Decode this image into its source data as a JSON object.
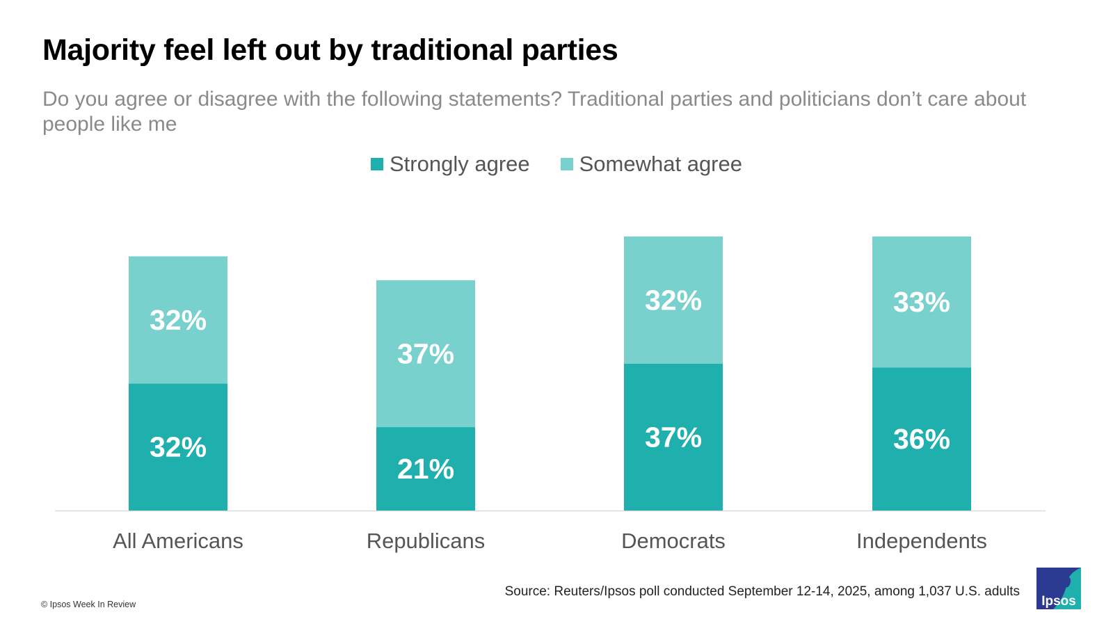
{
  "title": "Majority feel left out by traditional parties",
  "subtitle": "Do you agree or disagree with the following statements? Traditional parties and politicians don’t care about people like me",
  "legend": [
    {
      "label": "Strongly agree",
      "color": "#1fb0ae"
    },
    {
      "label": "Somewhat agree",
      "color": "#79d1ce"
    }
  ],
  "chart_data": {
    "type": "bar",
    "stacked": true,
    "title": "Majority feel left out by traditional parties",
    "categories": [
      "All Americans",
      "Republicans",
      "Democrats",
      "Independents"
    ],
    "series": [
      {
        "name": "Strongly agree",
        "values": [
          32,
          21,
          37,
          36
        ],
        "color": "#1fb0ae"
      },
      {
        "name": "Somewhat agree",
        "values": [
          32,
          37,
          32,
          33
        ],
        "color": "#79d1ce"
      }
    ],
    "data_label_suffix": "%",
    "ylim": [
      0,
      69
    ],
    "grid": false,
    "legend_position": "top-center"
  },
  "source": "Source: Reuters/Ipsos poll conducted September 12-14, 2025, among 1,037 U.S. adults",
  "copyright": "© Ipsos Week In Review",
  "logo": {
    "text": "Ipsos",
    "icon": "ipsos-logo-icon",
    "color_dark": "#2b3990",
    "color_light": "#1fb0ae"
  }
}
